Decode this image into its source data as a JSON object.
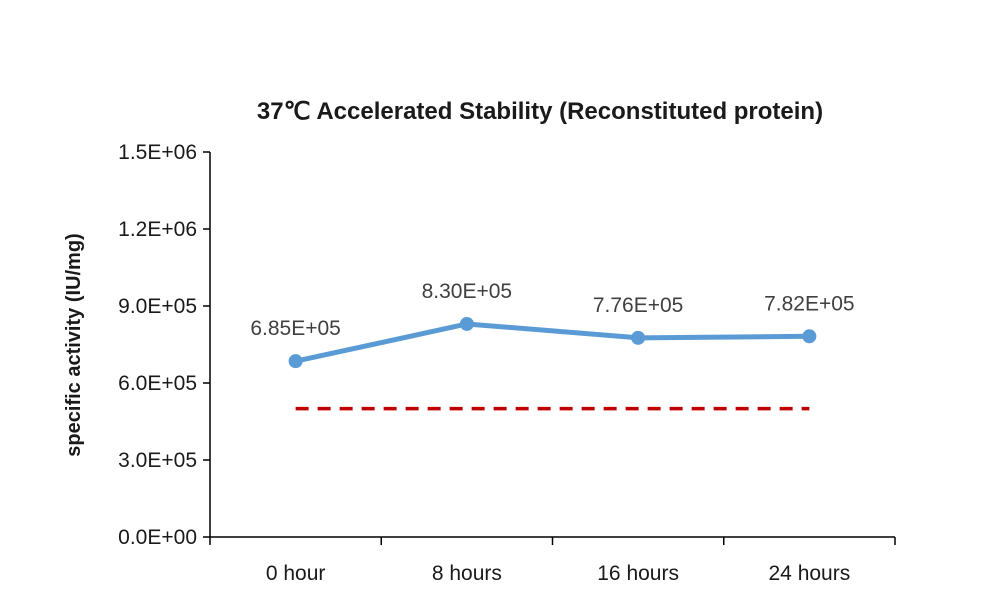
{
  "chart_data": {
    "type": "line",
    "title": "37℃ Accelerated  Stability (Reconstituted protein)",
    "xlabel": "",
    "ylabel": "specific activity (IU/mg)",
    "categories": [
      "0 hour",
      "8 hours",
      "16 hours",
      "24 hours"
    ],
    "series": [
      {
        "values": [
          685000,
          830000,
          776000,
          782000
        ],
        "labels": [
          "6.85E+05",
          "8.30E+05",
          "7.76E+05",
          "7.82E+05"
        ],
        "color": "#5B9BD5"
      }
    ],
    "reference_line": {
      "value": 500000,
      "color": "#C00000",
      "style": "dashed"
    },
    "ylim": [
      0,
      1500000
    ],
    "yticks": [
      {
        "value": 0,
        "label": "0.0E+00"
      },
      {
        "value": 300000,
        "label": "3.0E+05"
      },
      {
        "value": 600000,
        "label": "6.0E+05"
      },
      {
        "value": 900000,
        "label": "9.0E+05"
      },
      {
        "value": 1200000,
        "label": "1.2E+06"
      },
      {
        "value": 1500000,
        "label": "1.5E+06"
      }
    ],
    "grid": false,
    "legend": "none"
  }
}
